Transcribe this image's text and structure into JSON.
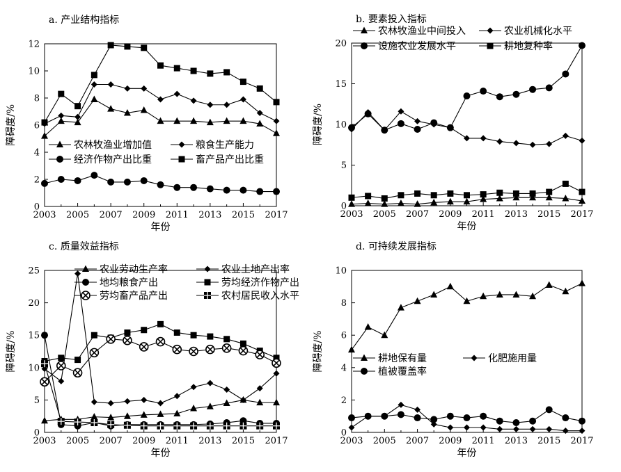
{
  "chart_data": [
    {
      "type": "line",
      "title": "a. 产业结构指标",
      "xlabel": "年份",
      "ylabel": "障碍度/%",
      "xlim": [
        2003,
        2017
      ],
      "ylim": [
        0,
        12
      ],
      "xticks": [
        "2003",
        "2005",
        "2007",
        "2009",
        "2011",
        "2013",
        "2015",
        "2017"
      ],
      "yticks": [
        "0",
        "2",
        "4",
        "6",
        "8",
        "10",
        "12"
      ],
      "x": [
        2003,
        2004,
        2005,
        2006,
        2007,
        2008,
        2009,
        2010,
        2011,
        2012,
        2013,
        2014,
        2015,
        2016,
        2017
      ],
      "series": [
        {
          "name": "农林牧渔业增加值",
          "marker": "triangle",
          "values": [
            5.2,
            6.3,
            6.2,
            7.9,
            7.2,
            6.9,
            7.1,
            6.3,
            6.3,
            6.3,
            6.2,
            6.3,
            6.3,
            6.1,
            5.4
          ]
        },
        {
          "name": "粮食生产能力",
          "marker": "diamond",
          "values": [
            6.1,
            6.7,
            6.6,
            9.0,
            9.0,
            8.7,
            8.7,
            7.9,
            8.3,
            7.8,
            7.5,
            7.5,
            7.9,
            6.9,
            6.3
          ]
        },
        {
          "name": "经济作物产出比重",
          "marker": "circle",
          "values": [
            1.7,
            2.0,
            1.9,
            2.3,
            1.8,
            1.8,
            1.9,
            1.6,
            1.4,
            1.4,
            1.3,
            1.2,
            1.2,
            1.1,
            1.1
          ]
        },
        {
          "name": "畜产品产出比重",
          "marker": "square",
          "values": [
            6.2,
            8.3,
            7.4,
            9.7,
            11.9,
            11.8,
            11.7,
            10.4,
            10.2,
            10.0,
            9.8,
            9.9,
            9.2,
            8.7,
            7.7
          ]
        }
      ],
      "legend_columns": 2
    },
    {
      "type": "line",
      "title": "b. 要素投入指标",
      "xlabel": "年份",
      "ylabel": "障碍度/%",
      "xlim": [
        2003,
        2017
      ],
      "ylim": [
        0,
        20
      ],
      "xticks": [
        "2003",
        "2005",
        "2007",
        "2009",
        "2011",
        "2013",
        "2015",
        "2017"
      ],
      "yticks": [
        "0",
        "5",
        "10",
        "15",
        "20"
      ],
      "x": [
        2003,
        2004,
        2005,
        2006,
        2007,
        2008,
        2009,
        2010,
        2011,
        2012,
        2013,
        2014,
        2015,
        2016,
        2017
      ],
      "series": [
        {
          "name": "农林牧渔业中间投入",
          "marker": "triangle",
          "values": [
            0.2,
            0.3,
            0.2,
            0.3,
            0.2,
            0.4,
            0.5,
            0.5,
            0.8,
            0.9,
            1.0,
            1.0,
            1.0,
            0.9,
            0.6
          ]
        },
        {
          "name": "农业机械化水平",
          "marker": "diamond",
          "values": [
            9.4,
            11.5,
            9.3,
            11.6,
            10.4,
            10.0,
            9.6,
            8.3,
            8.3,
            7.9,
            7.7,
            7.5,
            7.6,
            8.6,
            8.0
          ]
        },
        {
          "name": "设施农业发展水平",
          "marker": "circle",
          "values": [
            9.6,
            11.3,
            9.3,
            10.1,
            9.4,
            10.2,
            9.6,
            13.5,
            14.1,
            13.4,
            13.7,
            14.3,
            14.5,
            16.2,
            19.7
          ]
        },
        {
          "name": "耕地复种率",
          "marker": "square",
          "values": [
            1.0,
            1.2,
            0.9,
            1.3,
            1.5,
            1.3,
            1.5,
            1.3,
            1.4,
            1.6,
            1.5,
            1.5,
            1.7,
            2.7,
            1.7
          ]
        }
      ],
      "legend_columns": 2
    },
    {
      "type": "line",
      "title": "c. 质量效益指标",
      "xlabel": "年份",
      "ylabel": "障碍度/%",
      "xlim": [
        2003,
        2017
      ],
      "ylim": [
        0,
        25
      ],
      "xticks": [
        "2003",
        "2005",
        "2007",
        "2009",
        "2011",
        "2013",
        "2015",
        "2017"
      ],
      "yticks": [
        "0",
        "5",
        "10",
        "15",
        "20",
        "25"
      ],
      "x": [
        2003,
        2004,
        2005,
        2006,
        2007,
        2008,
        2009,
        2010,
        2011,
        2012,
        2013,
        2014,
        2015,
        2016,
        2017
      ],
      "series": [
        {
          "name": "农业劳动生产率",
          "marker": "triangle",
          "values": [
            1.8,
            2.0,
            2.0,
            2.4,
            2.3,
            2.5,
            2.7,
            2.8,
            2.9,
            3.7,
            4.0,
            4.5,
            5.0,
            4.6,
            4.6
          ]
        },
        {
          "name": "农业土地产出率",
          "marker": "diamond",
          "values": [
            9.8,
            7.9,
            24.5,
            4.7,
            4.5,
            4.8,
            5.0,
            4.5,
            5.6,
            7.0,
            7.6,
            6.6,
            5.0,
            6.8,
            9.1
          ]
        },
        {
          "name": "地均粮食产出",
          "marker": "circle",
          "values": [
            15.0,
            1.2,
            1.0,
            1.5,
            1.0,
            1.2,
            1.2,
            1.2,
            1.2,
            1.2,
            1.3,
            1.5,
            1.8,
            1.4,
            1.4
          ]
        },
        {
          "name": "劳均经济作物产出",
          "marker": "square",
          "values": [
            11.0,
            11.5,
            11.2,
            15.0,
            14.6,
            15.4,
            15.8,
            16.7,
            15.4,
            15.0,
            14.8,
            14.4,
            13.7,
            12.6,
            11.5
          ]
        },
        {
          "name": "劳均畜产品产出",
          "marker": "xcircle",
          "values": [
            7.8,
            10.3,
            9.2,
            12.3,
            14.4,
            14.2,
            13.2,
            14.0,
            12.8,
            12.5,
            12.8,
            13.0,
            12.6,
            12.0,
            10.7
          ]
        },
        {
          "name": "农村居民收入水平",
          "marker": "crosssquare",
          "values": [
            10.6,
            1.7,
            1.6,
            1.5,
            1.2,
            1.1,
            1.0,
            1.0,
            1.0,
            1.0,
            1.0,
            1.0,
            1.0,
            1.0,
            1.0
          ]
        }
      ],
      "legend_columns": 2
    },
    {
      "type": "line",
      "title": "d. 可持续发展指标",
      "xlabel": "年份",
      "ylabel": "障碍度/%",
      "xlim": [
        2003,
        2017
      ],
      "ylim": [
        0,
        10
      ],
      "xticks": [
        "2003",
        "2005",
        "2007",
        "2009",
        "2011",
        "2013",
        "2015",
        "2017"
      ],
      "yticks": [
        "0",
        "2",
        "4",
        "6",
        "8",
        "10"
      ],
      "x": [
        2003,
        2004,
        2005,
        2006,
        2007,
        2008,
        2009,
        2010,
        2011,
        2012,
        2013,
        2014,
        2015,
        2016,
        2017
      ],
      "series": [
        {
          "name": "耕地保有量",
          "marker": "triangle",
          "values": [
            5.1,
            6.5,
            6.0,
            7.7,
            8.1,
            8.5,
            9.0,
            8.1,
            8.4,
            8.5,
            8.5,
            8.4,
            9.1,
            8.7,
            9.2
          ]
        },
        {
          "name": "化肥施用量",
          "marker": "diamond",
          "values": [
            0.3,
            1.0,
            1.0,
            1.7,
            1.4,
            0.5,
            0.3,
            0.3,
            0.3,
            0.2,
            0.2,
            0.2,
            0.2,
            0.1,
            0.1
          ]
        },
        {
          "name": "植被覆盖率",
          "marker": "circle",
          "values": [
            0.9,
            1.0,
            1.0,
            1.1,
            0.9,
            0.8,
            1.0,
            0.9,
            1.0,
            0.7,
            0.6,
            0.7,
            1.4,
            0.9,
            0.7
          ]
        }
      ],
      "legend_columns": 2
    }
  ]
}
